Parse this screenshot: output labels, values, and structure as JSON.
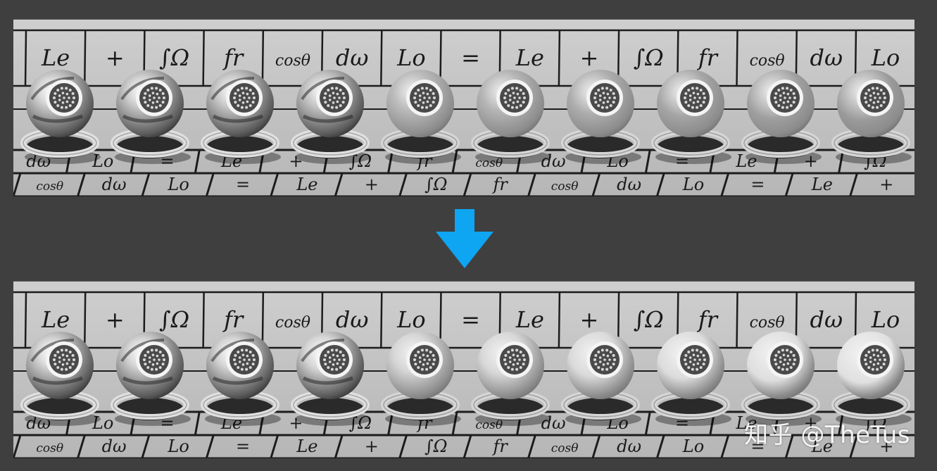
{
  "rows": {
    "top": {
      "back": [
        "Le",
        "+",
        "∫Ω",
        "fr",
        "cosθ",
        "dω",
        "Lo",
        "=",
        "Le",
        "+",
        "∫Ω",
        "fr",
        "cosθ",
        "dω",
        "Lo"
      ],
      "mid": [
        "dω",
        "Lo",
        "=",
        "Le",
        "+",
        "∫Ω",
        "fr",
        "cosθ",
        "dω",
        "Lo",
        "=",
        "Le",
        "+",
        "∫Ω"
      ],
      "front": [
        "cosθ",
        "dω",
        "Lo",
        "=",
        "Le",
        "+",
        "∫Ω",
        "fr",
        "cosθ",
        "dω",
        "Lo",
        "=",
        "Le",
        "+"
      ]
    },
    "bottom": {
      "back": [
        "Le",
        "+",
        "∫Ω",
        "fr",
        "cosθ",
        "dω",
        "Lo",
        "=",
        "Le",
        "+",
        "∫Ω",
        "fr",
        "cosθ",
        "dω",
        "Lo"
      ],
      "mid": [
        "dω",
        "Lo",
        "=",
        "Le",
        "+",
        "∫Ω",
        "fr",
        "cosθ",
        "dω",
        "Lo",
        "=",
        "Le",
        "+",
        "∫Ω"
      ],
      "front": [
        "cosθ",
        "dω",
        "Lo",
        "=",
        "Le",
        "+",
        "∫Ω",
        "fr",
        "cosθ",
        "dω",
        "Lo",
        "=",
        "Le",
        "+"
      ]
    }
  },
  "spheres": {
    "count": 10,
    "roughness_top": [
      0.0,
      0.05,
      0.12,
      0.22,
      0.33,
      0.45,
      0.57,
      0.7,
      0.83,
      0.95
    ],
    "roughness_bottom": [
      0.0,
      0.05,
      0.12,
      0.22,
      0.33,
      0.45,
      0.57,
      0.7,
      0.83,
      0.95
    ],
    "tone_top": [
      "#d9d9d9",
      "#d3d3d3",
      "#cdcdcd",
      "#c4c4c4",
      "#bcbcbc",
      "#b4b4b4",
      "#adadad",
      "#a5a5a5",
      "#9f9f9f",
      "#9a9a9a"
    ],
    "tone_bottom": [
      "#dcdcdc",
      "#d8d8d8",
      "#d6d6d6",
      "#d5d5d5",
      "#d6d6d6",
      "#d8d8d8",
      "#dadada",
      "#dcdcdc",
      "#dedede",
      "#e0e0e0"
    ]
  },
  "arrow_color": "#0ea5f3",
  "watermark": "知乎 @TheTus"
}
